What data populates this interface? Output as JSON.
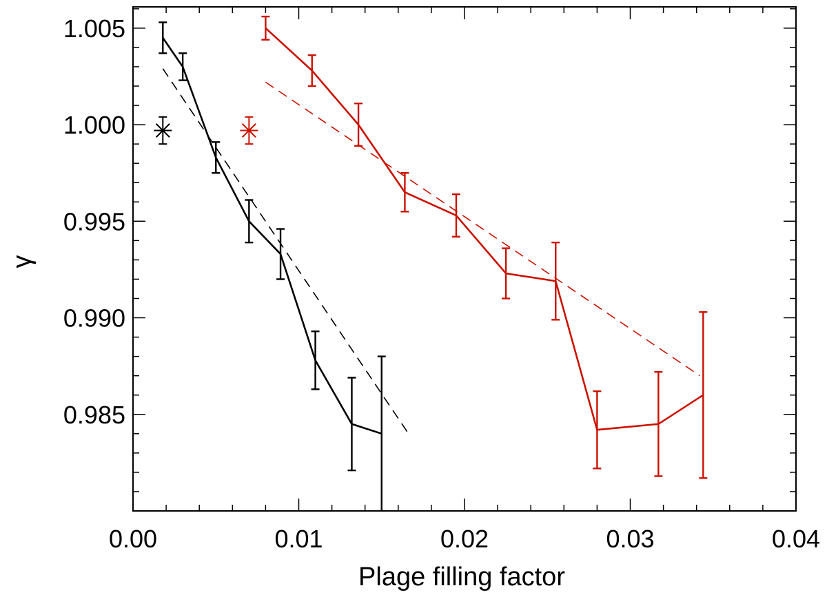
{
  "chart_data": {
    "type": "line",
    "title": "",
    "xlabel": "Plage filling factor",
    "ylabel": "γ",
    "xlim": [
      0.0,
      0.04
    ],
    "ylim": [
      0.98,
      1.0061
    ],
    "x_ticks": [
      "0.00",
      "0.01",
      "0.02",
      "0.03",
      "0.04"
    ],
    "x_tick_values": [
      0.0,
      0.01,
      0.02,
      0.03,
      0.04
    ],
    "y_ticks": [
      "1.005",
      "1.000",
      "0.995",
      "0.990",
      "0.985"
    ],
    "y_tick_values": [
      1.005,
      1.0,
      0.995,
      0.99,
      0.985
    ],
    "grid": false,
    "legend": false,
    "series": [
      {
        "color": "#000000",
        "style": "solid",
        "error_bars": true,
        "points": [
          {
            "x": 0.0018,
            "y": 1.0045,
            "err": 0.0008
          },
          {
            "x": 0.003,
            "y": 1.003,
            "err": 0.0007
          },
          {
            "x": 0.005,
            "y": 0.9983,
            "err": 0.0008
          },
          {
            "x": 0.007,
            "y": 0.995,
            "err": 0.0011
          },
          {
            "x": 0.0089,
            "y": 0.9933,
            "err": 0.0013
          },
          {
            "x": 0.011,
            "y": 0.9878,
            "err": 0.0015
          },
          {
            "x": 0.0132,
            "y": 0.9845,
            "err": 0.0024
          },
          {
            "x": 0.015,
            "y": 0.984,
            "err": 0.004
          }
        ]
      },
      {
        "color": "#cc1100",
        "style": "solid",
        "error_bars": true,
        "points": [
          {
            "x": 0.008,
            "y": 1.005,
            "err": 0.0006
          },
          {
            "x": 0.0108,
            "y": 1.0028,
            "err": 0.0008
          },
          {
            "x": 0.0136,
            "y": 1.0,
            "err": 0.0011
          },
          {
            "x": 0.0164,
            "y": 0.9965,
            "err": 0.001
          },
          {
            "x": 0.0195,
            "y": 0.9953,
            "err": 0.0011
          },
          {
            "x": 0.0225,
            "y": 0.9923,
            "err": 0.0013
          },
          {
            "x": 0.0255,
            "y": 0.9919,
            "err": 0.002
          },
          {
            "x": 0.028,
            "y": 0.9842,
            "err": 0.002
          },
          {
            "x": 0.0317,
            "y": 0.9845,
            "err": 0.0027
          },
          {
            "x": 0.0344,
            "y": 0.986,
            "err": 0.0043
          }
        ]
      }
    ],
    "fit_lines": [
      {
        "color": "#000000",
        "style": "dashed",
        "x": [
          0.0018,
          0.0167
        ],
        "y": [
          1.0029,
          0.9839
        ]
      },
      {
        "color": "#cc1100",
        "style": "dashed",
        "x": [
          0.008,
          0.0342
        ],
        "y": [
          1.0022,
          0.987
        ]
      }
    ],
    "star_markers": [
      {
        "color": "#000000",
        "x": 0.0018,
        "y": 0.9997,
        "err": 0.0007
      },
      {
        "color": "#cc1100",
        "x": 0.007,
        "y": 0.9997,
        "err": 0.0007
      }
    ]
  }
}
